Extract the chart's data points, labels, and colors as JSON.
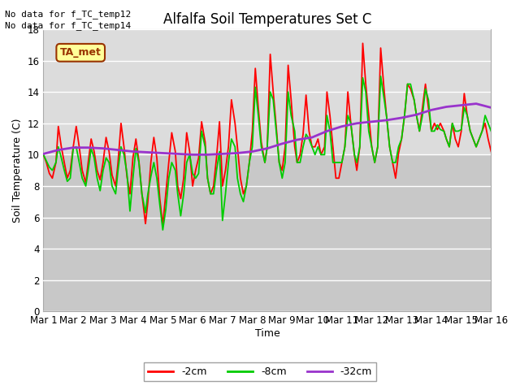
{
  "title": "Alfalfa Soil Temperatures Set C",
  "xlabel": "Time",
  "ylabel": "Soil Temperature (C)",
  "no_data_text": [
    "No data for f_TC_temp12",
    "No data for f_TC_temp14"
  ],
  "ta_met_label": "TA_met",
  "ylim": [
    0,
    18
  ],
  "yticks": [
    0,
    2,
    4,
    6,
    8,
    10,
    12,
    14,
    16,
    18
  ],
  "x_labels": [
    "Mar 1",
    "Mar 2",
    "Mar 3",
    "Mar 4",
    "Mar 5",
    "Mar 6",
    "Mar 7",
    "Mar 8",
    "Mar 9",
    "Mar 10",
    "Mar 11",
    "Mar 12",
    "Mar 13",
    "Mar 14",
    "Mar 15",
    "Mar 16"
  ],
  "colors": {
    "red": "#FF0000",
    "green": "#00CC00",
    "purple": "#9933CC",
    "bg_upper": "#DCDCDC",
    "bg_lower": "#C8C8C8",
    "ta_met_bg": "#FFFF99",
    "ta_met_border": "#993300",
    "ta_met_text": "#993300"
  },
  "legend": [
    {
      "label": "-2cm",
      "color": "#FF0000"
    },
    {
      "label": "-8cm",
      "color": "#00CC00"
    },
    {
      "label": "-32cm",
      "color": "#9933CC"
    }
  ],
  "series_2cm_x": [
    0.0,
    0.1,
    0.2,
    0.3,
    0.42,
    0.5,
    0.6,
    0.7,
    0.8,
    0.9,
    1.0,
    1.1,
    1.2,
    1.3,
    1.42,
    1.5,
    1.6,
    1.7,
    1.8,
    1.9,
    2.0,
    2.1,
    2.2,
    2.3,
    2.42,
    2.5,
    2.6,
    2.7,
    2.8,
    2.9,
    3.0,
    3.1,
    3.2,
    3.3,
    3.42,
    3.5,
    3.6,
    3.7,
    3.8,
    3.9,
    4.0,
    4.1,
    4.2,
    4.3,
    4.42,
    4.5,
    4.6,
    4.7,
    4.8,
    4.9,
    5.0,
    5.1,
    5.2,
    5.3,
    5.42,
    5.5,
    5.6,
    5.7,
    5.8,
    5.9,
    6.0,
    6.1,
    6.2,
    6.3,
    6.42,
    6.5,
    6.6,
    6.7,
    6.8,
    6.9,
    7.0,
    7.1,
    7.2,
    7.3,
    7.42,
    7.5,
    7.6,
    7.7,
    7.8,
    7.9,
    8.0,
    8.1,
    8.2,
    8.3,
    8.42,
    8.5,
    8.6,
    8.7,
    8.8,
    8.9,
    9.0,
    9.1,
    9.2,
    9.3,
    9.42,
    9.5,
    9.6,
    9.7,
    9.8,
    9.9,
    10.0,
    10.1,
    10.2,
    10.3,
    10.42,
    10.5,
    10.6,
    10.7,
    10.8,
    10.9,
    11.0,
    11.1,
    11.2,
    11.3,
    11.42,
    11.5,
    11.6,
    11.7,
    11.8,
    11.9,
    12.0,
    12.1,
    12.2,
    12.3,
    12.42,
    12.5,
    12.6,
    12.7,
    12.8,
    12.9,
    13.0,
    13.1,
    13.2,
    13.3,
    13.42,
    13.5,
    13.6,
    13.7,
    13.8,
    13.9,
    14.0,
    14.1,
    14.2,
    14.3,
    14.5,
    14.6,
    14.7,
    14.8,
    14.9,
    15.0
  ],
  "series_2cm_y": [
    10.0,
    9.5,
    8.8,
    8.5,
    9.5,
    11.8,
    10.5,
    9.5,
    8.5,
    9.0,
    10.5,
    11.8,
    10.5,
    9.0,
    8.2,
    9.5,
    11.0,
    10.2,
    9.0,
    8.4,
    9.5,
    11.1,
    10.2,
    8.7,
    8.0,
    9.5,
    12.0,
    10.5,
    8.6,
    7.5,
    9.8,
    11.0,
    9.6,
    7.5,
    5.6,
    7.0,
    9.5,
    11.1,
    9.8,
    7.2,
    5.5,
    7.5,
    9.5,
    11.4,
    10.2,
    8.0,
    7.2,
    8.5,
    11.4,
    10.2,
    8.0,
    9.0,
    9.8,
    12.1,
    10.8,
    8.5,
    7.5,
    8.0,
    9.8,
    12.1,
    8.0,
    9.0,
    10.5,
    13.5,
    12.0,
    10.5,
    8.5,
    7.5,
    8.0,
    9.5,
    11.5,
    15.5,
    13.0,
    10.8,
    9.5,
    10.5,
    16.4,
    14.0,
    11.8,
    9.5,
    9.0,
    10.5,
    15.7,
    13.5,
    10.5,
    9.5,
    10.0,
    11.3,
    13.8,
    11.5,
    10.5,
    10.5,
    11.0,
    10.0,
    10.5,
    14.0,
    12.5,
    10.5,
    8.5,
    8.5,
    9.5,
    10.5,
    14.0,
    12.0,
    10.0,
    9.0,
    10.5,
    17.1,
    14.5,
    12.5,
    10.5,
    9.5,
    10.5,
    16.8,
    14.0,
    12.4,
    10.5,
    9.5,
    8.5,
    10.1,
    11.0,
    12.5,
    14.5,
    14.2,
    13.5,
    12.5,
    11.5,
    13.0,
    14.5,
    13.0,
    11.5,
    12.0,
    11.6,
    12.0,
    11.5,
    11.0,
    10.5,
    12.0,
    11.0,
    10.5,
    11.5,
    13.9,
    12.5,
    11.5,
    10.5,
    11.0,
    11.5,
    12.0,
    11.0,
    10.2
  ],
  "series_8cm_x": [
    0.0,
    0.1,
    0.2,
    0.3,
    0.42,
    0.5,
    0.6,
    0.7,
    0.8,
    0.9,
    1.0,
    1.1,
    1.2,
    1.3,
    1.42,
    1.5,
    1.6,
    1.7,
    1.8,
    1.9,
    2.0,
    2.1,
    2.2,
    2.3,
    2.42,
    2.5,
    2.6,
    2.7,
    2.8,
    2.9,
    3.0,
    3.1,
    3.2,
    3.3,
    3.42,
    3.5,
    3.6,
    3.7,
    3.8,
    3.9,
    4.0,
    4.1,
    4.2,
    4.3,
    4.42,
    4.5,
    4.6,
    4.7,
    4.8,
    4.9,
    5.0,
    5.1,
    5.2,
    5.3,
    5.42,
    5.5,
    5.6,
    5.7,
    5.8,
    5.9,
    6.0,
    6.1,
    6.2,
    6.3,
    6.42,
    6.5,
    6.6,
    6.7,
    6.8,
    6.9,
    7.0,
    7.1,
    7.2,
    7.3,
    7.42,
    7.5,
    7.6,
    7.7,
    7.8,
    7.9,
    8.0,
    8.1,
    8.2,
    8.3,
    8.42,
    8.5,
    8.6,
    8.7,
    8.8,
    8.9,
    9.0,
    9.1,
    9.2,
    9.3,
    9.42,
    9.5,
    9.6,
    9.7,
    9.8,
    9.9,
    10.0,
    10.1,
    10.2,
    10.3,
    10.42,
    10.5,
    10.6,
    10.7,
    10.8,
    10.9,
    11.0,
    11.1,
    11.2,
    11.3,
    11.42,
    11.5,
    11.6,
    11.7,
    11.8,
    11.9,
    12.0,
    12.1,
    12.2,
    12.3,
    12.42,
    12.5,
    12.6,
    12.7,
    12.8,
    12.9,
    13.0,
    13.1,
    13.2,
    13.3,
    13.42,
    13.5,
    13.6,
    13.7,
    13.8,
    13.9,
    14.0,
    14.1,
    14.2,
    14.3,
    14.5,
    14.6,
    14.7,
    14.8,
    14.9,
    15.0
  ],
  "series_8cm_y": [
    10.0,
    9.6,
    9.2,
    9.0,
    9.5,
    10.5,
    9.8,
    9.0,
    8.3,
    8.5,
    10.4,
    10.5,
    9.5,
    8.5,
    8.0,
    9.0,
    10.4,
    9.8,
    8.5,
    7.7,
    9.0,
    9.8,
    9.5,
    8.0,
    7.5,
    9.0,
    10.5,
    10.0,
    8.8,
    6.4,
    8.5,
    10.4,
    9.5,
    7.5,
    6.3,
    7.5,
    8.6,
    9.5,
    8.5,
    6.8,
    5.2,
    6.5,
    8.5,
    9.5,
    9.0,
    7.5,
    6.1,
    7.5,
    9.5,
    10.0,
    8.8,
    8.5,
    8.8,
    11.5,
    10.5,
    8.5,
    7.5,
    7.5,
    9.0,
    10.2,
    5.8,
    7.5,
    9.5,
    11.0,
    10.5,
    8.5,
    7.5,
    7.0,
    8.0,
    9.5,
    10.5,
    14.3,
    12.5,
    10.5,
    9.5,
    10.5,
    14.0,
    13.5,
    11.5,
    9.5,
    8.5,
    9.5,
    14.0,
    12.5,
    11.5,
    9.5,
    9.5,
    10.5,
    11.3,
    11.0,
    10.5,
    10.0,
    10.5,
    10.0,
    10.0,
    12.5,
    11.5,
    9.5,
    9.5,
    9.5,
    9.5,
    10.5,
    12.5,
    12.0,
    10.0,
    9.5,
    10.5,
    14.9,
    14.0,
    11.5,
    10.5,
    9.5,
    10.5,
    15.0,
    13.5,
    12.4,
    10.5,
    9.5,
    9.5,
    10.5,
    11.0,
    12.5,
    14.5,
    14.5,
    13.5,
    12.5,
    11.5,
    12.5,
    14.2,
    13.5,
    11.5,
    11.5,
    11.9,
    11.6,
    11.5,
    11.0,
    10.5,
    12.0,
    11.5,
    11.5,
    11.6,
    13.0,
    12.5,
    11.5,
    10.5,
    11.0,
    11.5,
    12.5,
    12.0,
    11.5
  ],
  "series_32cm_x": [
    0.0,
    0.5,
    1.0,
    1.5,
    2.0,
    2.5,
    3.0,
    3.5,
    4.0,
    4.5,
    5.0,
    5.5,
    6.0,
    6.5,
    7.0,
    7.5,
    8.0,
    8.5,
    9.0,
    9.5,
    10.0,
    10.5,
    11.0,
    11.5,
    12.0,
    12.5,
    13.0,
    13.5,
    14.0,
    14.5,
    15.0
  ],
  "series_32cm_y": [
    10.05,
    10.3,
    10.45,
    10.45,
    10.4,
    10.3,
    10.2,
    10.15,
    10.1,
    10.05,
    10.0,
    10.0,
    10.05,
    10.1,
    10.2,
    10.4,
    10.7,
    10.95,
    11.1,
    11.5,
    11.8,
    12.0,
    12.1,
    12.2,
    12.35,
    12.55,
    12.85,
    13.05,
    13.15,
    13.25,
    13.0
  ]
}
